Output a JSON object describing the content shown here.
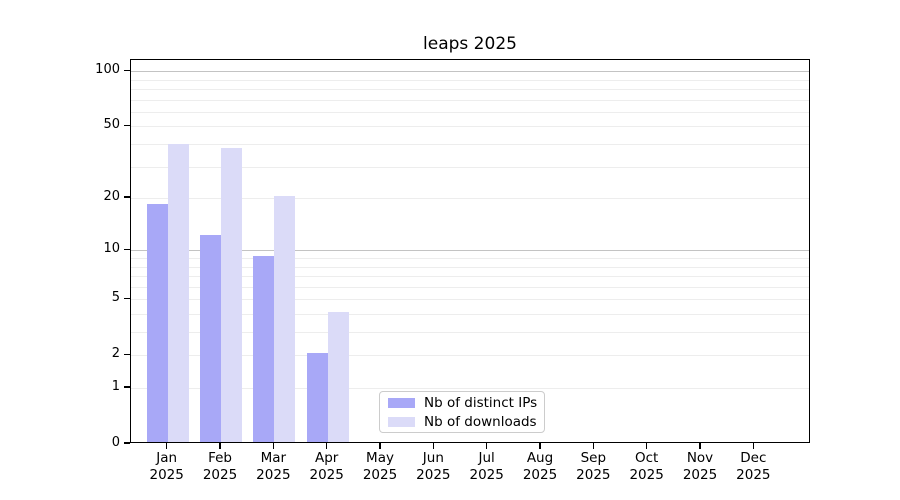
{
  "title": "leaps 2025",
  "legend": {
    "items": [
      {
        "label": "Nb of distinct IPs",
        "color": "#a8a8f7"
      },
      {
        "label": "Nb of downloads",
        "color": "#dbdbf8"
      }
    ]
  },
  "chart_data": {
    "type": "bar",
    "title": "leaps 2025",
    "categories": [
      "Jan",
      "Feb",
      "Mar",
      "Apr",
      "May",
      "Jun",
      "Jul",
      "Aug",
      "Sep",
      "Oct",
      "Nov",
      "Dec"
    ],
    "category_year": "2025",
    "series": [
      {
        "name": "Nb of distinct IPs",
        "color": "#a8a8f7",
        "values": [
          18,
          12,
          9,
          2,
          0,
          0,
          0,
          0,
          0,
          0,
          0,
          0
        ]
      },
      {
        "name": "Nb of downloads",
        "color": "#dbdbf8",
        "values": [
          39,
          37,
          20,
          4,
          0,
          0,
          0,
          0,
          0,
          0,
          0,
          0
        ]
      }
    ],
    "yscale": "log1p",
    "ylim": [
      0,
      115
    ],
    "ytick_values": [
      0,
      1,
      2,
      5,
      10,
      20,
      50,
      100
    ],
    "minor_gridline_values": [
      1,
      2,
      3,
      4,
      5,
      6,
      7,
      8,
      9,
      20,
      30,
      40,
      50,
      60,
      70,
      80,
      90
    ],
    "major_gridline_values": [
      10,
      100
    ],
    "grid": true,
    "legend_position": "lower center (inside plot)"
  }
}
